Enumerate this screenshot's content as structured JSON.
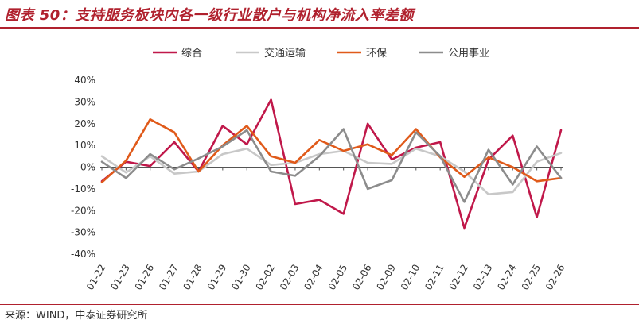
{
  "title": "图表 50：支持服务板块内各一级行业散户与机构净流入率差额",
  "source": "来源：WIND，中泰证券研究所",
  "colors": {
    "accent": "#b0212e"
  },
  "chart_data": {
    "type": "line",
    "categories": [
      "01-22",
      "01-23",
      "01-26",
      "01-27",
      "01-28",
      "01-29",
      "01-30",
      "02-02",
      "02-03",
      "02-04",
      "02-05",
      "02-06",
      "02-09",
      "02-10",
      "02-11",
      "02-12",
      "02-13",
      "02-24",
      "02-25",
      "02-26"
    ],
    "ylim": [
      -40,
      40
    ],
    "yticks": [
      "-40%",
      "-30%",
      "-20%",
      "-10%",
      "0%",
      "10%",
      "20%",
      "30%",
      "40%"
    ],
    "ytick_values": [
      -40,
      -30,
      -20,
      -10,
      0,
      10,
      20,
      30,
      40
    ],
    "legend_position": "top",
    "grid": false,
    "series": [
      {
        "name": "综合",
        "color": "#c0184a",
        "values": [
          -6.5,
          2.5,
          0.5,
          11.5,
          -2,
          19,
          10.5,
          31,
          -17,
          -15,
          -21.5,
          20,
          3.5,
          9,
          11.5,
          -28,
          3.5,
          14.5,
          -23,
          17
        ]
      },
      {
        "name": "交通运输",
        "color": "#c8c8c8",
        "values": [
          5,
          -2.5,
          5,
          -3,
          -2,
          6,
          8.5,
          1,
          2,
          6,
          7.5,
          2,
          1.5,
          8.5,
          5,
          -2,
          -12.5,
          -11.5,
          2.5,
          6.5
        ]
      },
      {
        "name": "环保",
        "color": "#e05a1a",
        "values": [
          -7,
          3,
          22,
          16,
          -2,
          10,
          19,
          5,
          2,
          12.5,
          7.5,
          10.5,
          5.5,
          17.5,
          4.5,
          -4.5,
          4.5,
          0,
          -6.5,
          -5
        ]
      },
      {
        "name": "公用事业",
        "color": "#8c8c8c",
        "values": [
          2.5,
          -5,
          6,
          -1,
          4,
          9.5,
          17,
          -2,
          -4,
          5,
          17.5,
          -10,
          -6,
          16,
          5,
          -16,
          8,
          -8,
          9.5,
          -5
        ]
      }
    ]
  }
}
